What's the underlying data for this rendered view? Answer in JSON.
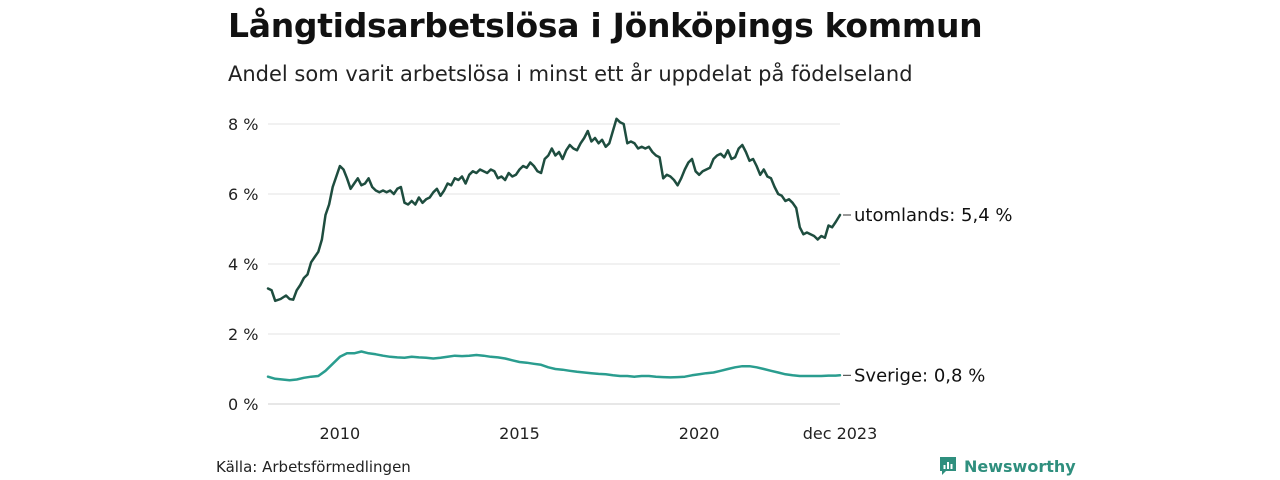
{
  "title": "Långtidsarbetslösa i Jönköpings kommun",
  "subtitle": "Andel som varit arbetslösa i minst ett år uppdelat på födelseland",
  "source": "Källa: Arbetsförmedlingen",
  "brand": {
    "name": "Newsworthy"
  },
  "colors": {
    "utomlands": "#1e4d3f",
    "sverige": "#2a9d8f",
    "grid": "#e3e3e3",
    "brand": "#2f8f7e"
  },
  "chart_data": {
    "type": "line",
    "title": "Långtidsarbetslösa i Jönköpings kommun",
    "xlabel": "",
    "ylabel": "",
    "ylim": [
      0,
      8
    ],
    "xlim": [
      2008.0,
      2023.92
    ],
    "y_ticks": [
      {
        "value": 0,
        "label": "0 %"
      },
      {
        "value": 2,
        "label": "2 %"
      },
      {
        "value": 4,
        "label": "4 %"
      },
      {
        "value": 6,
        "label": "6 %"
      },
      {
        "value": 8,
        "label": "8 %"
      }
    ],
    "x_ticks": [
      {
        "value": 2010,
        "label": "2010"
      },
      {
        "value": 2015,
        "label": "2015"
      },
      {
        "value": 2020,
        "label": "2020"
      },
      {
        "value": 2023.92,
        "label": "dec 2023"
      }
    ],
    "series": [
      {
        "name": "utomlands",
        "end_label": "utomlands: 5,4 %",
        "points": [
          [
            2008.0,
            3.3
          ],
          [
            2008.1,
            3.25
          ],
          [
            2008.2,
            2.95
          ],
          [
            2008.35,
            3.0
          ],
          [
            2008.5,
            3.1
          ],
          [
            2008.6,
            3.0
          ],
          [
            2008.7,
            2.98
          ],
          [
            2008.8,
            3.25
          ],
          [
            2008.9,
            3.4
          ],
          [
            2009.0,
            3.6
          ],
          [
            2009.1,
            3.7
          ],
          [
            2009.2,
            4.05
          ],
          [
            2009.3,
            4.2
          ],
          [
            2009.4,
            4.35
          ],
          [
            2009.5,
            4.7
          ],
          [
            2009.6,
            5.4
          ],
          [
            2009.7,
            5.7
          ],
          [
            2009.8,
            6.2
          ],
          [
            2009.9,
            6.5
          ],
          [
            2010.0,
            6.8
          ],
          [
            2010.1,
            6.7
          ],
          [
            2010.2,
            6.45
          ],
          [
            2010.3,
            6.15
          ],
          [
            2010.4,
            6.3
          ],
          [
            2010.5,
            6.45
          ],
          [
            2010.6,
            6.25
          ],
          [
            2010.7,
            6.3
          ],
          [
            2010.8,
            6.45
          ],
          [
            2010.9,
            6.2
          ],
          [
            2011.0,
            6.1
          ],
          [
            2011.1,
            6.05
          ],
          [
            2011.2,
            6.1
          ],
          [
            2011.3,
            6.05
          ],
          [
            2011.4,
            6.1
          ],
          [
            2011.5,
            6.0
          ],
          [
            2011.6,
            6.15
          ],
          [
            2011.7,
            6.2
          ],
          [
            2011.8,
            5.75
          ],
          [
            2011.9,
            5.7
          ],
          [
            2012.0,
            5.8
          ],
          [
            2012.1,
            5.7
          ],
          [
            2012.2,
            5.9
          ],
          [
            2012.3,
            5.75
          ],
          [
            2012.4,
            5.85
          ],
          [
            2012.5,
            5.9
          ],
          [
            2012.6,
            6.05
          ],
          [
            2012.7,
            6.15
          ],
          [
            2012.8,
            5.95
          ],
          [
            2012.9,
            6.1
          ],
          [
            2013.0,
            6.3
          ],
          [
            2013.1,
            6.25
          ],
          [
            2013.2,
            6.45
          ],
          [
            2013.3,
            6.4
          ],
          [
            2013.4,
            6.5
          ],
          [
            2013.5,
            6.3
          ],
          [
            2013.6,
            6.55
          ],
          [
            2013.7,
            6.65
          ],
          [
            2013.8,
            6.6
          ],
          [
            2013.9,
            6.7
          ],
          [
            2014.0,
            6.65
          ],
          [
            2014.1,
            6.6
          ],
          [
            2014.2,
            6.7
          ],
          [
            2014.3,
            6.65
          ],
          [
            2014.4,
            6.45
          ],
          [
            2014.5,
            6.5
          ],
          [
            2014.6,
            6.4
          ],
          [
            2014.7,
            6.6
          ],
          [
            2014.8,
            6.5
          ],
          [
            2014.9,
            6.55
          ],
          [
            2015.0,
            6.7
          ],
          [
            2015.1,
            6.8
          ],
          [
            2015.2,
            6.75
          ],
          [
            2015.3,
            6.9
          ],
          [
            2015.4,
            6.8
          ],
          [
            2015.5,
            6.65
          ],
          [
            2015.6,
            6.6
          ],
          [
            2015.7,
            7.0
          ],
          [
            2015.8,
            7.1
          ],
          [
            2015.9,
            7.3
          ],
          [
            2016.0,
            7.1
          ],
          [
            2016.1,
            7.2
          ],
          [
            2016.2,
            7.0
          ],
          [
            2016.3,
            7.25
          ],
          [
            2016.4,
            7.4
          ],
          [
            2016.5,
            7.3
          ],
          [
            2016.6,
            7.25
          ],
          [
            2016.7,
            7.45
          ],
          [
            2016.8,
            7.6
          ],
          [
            2016.9,
            7.8
          ],
          [
            2017.0,
            7.5
          ],
          [
            2017.1,
            7.6
          ],
          [
            2017.2,
            7.45
          ],
          [
            2017.3,
            7.55
          ],
          [
            2017.4,
            7.35
          ],
          [
            2017.5,
            7.45
          ],
          [
            2017.6,
            7.8
          ],
          [
            2017.7,
            8.15
          ],
          [
            2017.8,
            8.05
          ],
          [
            2017.9,
            8.0
          ],
          [
            2018.0,
            7.45
          ],
          [
            2018.1,
            7.5
          ],
          [
            2018.2,
            7.45
          ],
          [
            2018.3,
            7.3
          ],
          [
            2018.4,
            7.35
          ],
          [
            2018.5,
            7.3
          ],
          [
            2018.6,
            7.35
          ],
          [
            2018.7,
            7.2
          ],
          [
            2018.8,
            7.1
          ],
          [
            2018.9,
            7.05
          ],
          [
            2019.0,
            6.45
          ],
          [
            2019.1,
            6.55
          ],
          [
            2019.2,
            6.5
          ],
          [
            2019.3,
            6.4
          ],
          [
            2019.4,
            6.25
          ],
          [
            2019.5,
            6.45
          ],
          [
            2019.6,
            6.7
          ],
          [
            2019.7,
            6.9
          ],
          [
            2019.8,
            7.0
          ],
          [
            2019.9,
            6.65
          ],
          [
            2020.0,
            6.55
          ],
          [
            2020.1,
            6.65
          ],
          [
            2020.2,
            6.7
          ],
          [
            2020.3,
            6.75
          ],
          [
            2020.4,
            7.0
          ],
          [
            2020.5,
            7.1
          ],
          [
            2020.6,
            7.15
          ],
          [
            2020.7,
            7.05
          ],
          [
            2020.8,
            7.25
          ],
          [
            2020.9,
            7.0
          ],
          [
            2021.0,
            7.05
          ],
          [
            2021.1,
            7.3
          ],
          [
            2021.2,
            7.4
          ],
          [
            2021.3,
            7.2
          ],
          [
            2021.4,
            6.95
          ],
          [
            2021.5,
            7.0
          ],
          [
            2021.6,
            6.8
          ],
          [
            2021.7,
            6.55
          ],
          [
            2021.8,
            6.7
          ],
          [
            2021.9,
            6.5
          ],
          [
            2022.0,
            6.45
          ],
          [
            2022.1,
            6.2
          ],
          [
            2022.2,
            6.0
          ],
          [
            2022.3,
            5.95
          ],
          [
            2022.4,
            5.8
          ],
          [
            2022.5,
            5.85
          ],
          [
            2022.6,
            5.75
          ],
          [
            2022.7,
            5.6
          ],
          [
            2022.8,
            5.05
          ],
          [
            2022.9,
            4.85
          ],
          [
            2023.0,
            4.9
          ],
          [
            2023.1,
            4.85
          ],
          [
            2023.2,
            4.8
          ],
          [
            2023.3,
            4.7
          ],
          [
            2023.4,
            4.8
          ],
          [
            2023.5,
            4.75
          ],
          [
            2023.6,
            5.1
          ],
          [
            2023.7,
            5.05
          ],
          [
            2023.8,
            5.2
          ],
          [
            2023.92,
            5.4
          ]
        ]
      },
      {
        "name": "Sverige",
        "end_label": "Sverige: 0,8 %",
        "points": [
          [
            2008.0,
            0.78
          ],
          [
            2008.2,
            0.72
          ],
          [
            2008.4,
            0.7
          ],
          [
            2008.6,
            0.68
          ],
          [
            2008.8,
            0.7
          ],
          [
            2009.0,
            0.75
          ],
          [
            2009.2,
            0.78
          ],
          [
            2009.4,
            0.8
          ],
          [
            2009.6,
            0.95
          ],
          [
            2009.8,
            1.15
          ],
          [
            2010.0,
            1.35
          ],
          [
            2010.2,
            1.45
          ],
          [
            2010.4,
            1.45
          ],
          [
            2010.6,
            1.5
          ],
          [
            2010.8,
            1.45
          ],
          [
            2011.0,
            1.42
          ],
          [
            2011.2,
            1.38
          ],
          [
            2011.4,
            1.35
          ],
          [
            2011.6,
            1.33
          ],
          [
            2011.8,
            1.32
          ],
          [
            2012.0,
            1.35
          ],
          [
            2012.2,
            1.33
          ],
          [
            2012.4,
            1.32
          ],
          [
            2012.6,
            1.3
          ],
          [
            2012.8,
            1.32
          ],
          [
            2013.0,
            1.35
          ],
          [
            2013.2,
            1.38
          ],
          [
            2013.4,
            1.37
          ],
          [
            2013.6,
            1.38
          ],
          [
            2013.8,
            1.4
          ],
          [
            2014.0,
            1.38
          ],
          [
            2014.2,
            1.35
          ],
          [
            2014.4,
            1.33
          ],
          [
            2014.6,
            1.3
          ],
          [
            2014.8,
            1.25
          ],
          [
            2015.0,
            1.2
          ],
          [
            2015.2,
            1.18
          ],
          [
            2015.4,
            1.15
          ],
          [
            2015.6,
            1.12
          ],
          [
            2015.8,
            1.05
          ],
          [
            2016.0,
            1.0
          ],
          [
            2016.2,
            0.98
          ],
          [
            2016.4,
            0.95
          ],
          [
            2016.6,
            0.92
          ],
          [
            2016.8,
            0.9
          ],
          [
            2017.0,
            0.88
          ],
          [
            2017.2,
            0.86
          ],
          [
            2017.4,
            0.85
          ],
          [
            2017.6,
            0.82
          ],
          [
            2017.8,
            0.8
          ],
          [
            2018.0,
            0.8
          ],
          [
            2018.2,
            0.78
          ],
          [
            2018.4,
            0.8
          ],
          [
            2018.6,
            0.8
          ],
          [
            2018.8,
            0.78
          ],
          [
            2019.0,
            0.77
          ],
          [
            2019.2,
            0.76
          ],
          [
            2019.4,
            0.77
          ],
          [
            2019.6,
            0.78
          ],
          [
            2019.8,
            0.82
          ],
          [
            2020.0,
            0.85
          ],
          [
            2020.2,
            0.88
          ],
          [
            2020.4,
            0.9
          ],
          [
            2020.6,
            0.95
          ],
          [
            2020.8,
            1.0
          ],
          [
            2021.0,
            1.05
          ],
          [
            2021.2,
            1.08
          ],
          [
            2021.4,
            1.08
          ],
          [
            2021.6,
            1.05
          ],
          [
            2021.8,
            1.0
          ],
          [
            2022.0,
            0.95
          ],
          [
            2022.2,
            0.9
          ],
          [
            2022.4,
            0.85
          ],
          [
            2022.6,
            0.82
          ],
          [
            2022.8,
            0.8
          ],
          [
            2023.0,
            0.8
          ],
          [
            2023.2,
            0.8
          ],
          [
            2023.4,
            0.8
          ],
          [
            2023.6,
            0.81
          ],
          [
            2023.8,
            0.81
          ],
          [
            2023.92,
            0.82
          ]
        ]
      }
    ]
  }
}
